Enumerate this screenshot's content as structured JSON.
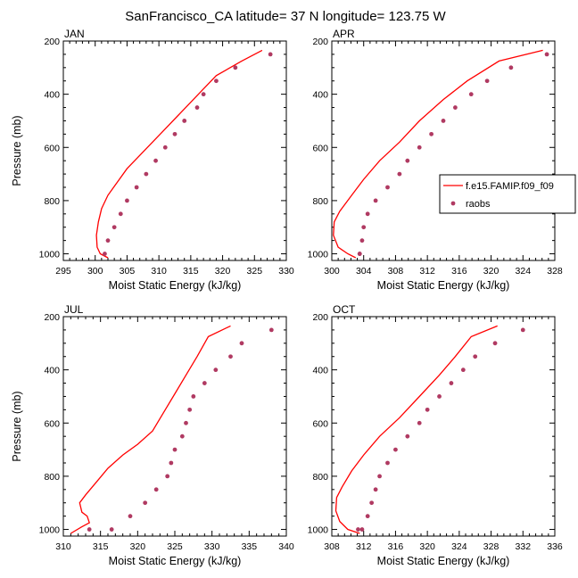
{
  "title": "SanFrancisco_CA  latitude= 37 N longitude= 123.75 W",
  "legend": {
    "entries": [
      {
        "label": "f.e15.FAMIP.f09_f09",
        "type": "line",
        "color": "#ff0000"
      },
      {
        "label": "raobs",
        "type": "marker",
        "color": "#b03a62"
      }
    ]
  },
  "chart_data": [
    {
      "type": "scatter",
      "title": "JAN",
      "xlabel": "Moist Static Energy (kJ/kg)",
      "ylabel": "Pressure (mb)",
      "xlim": [
        295,
        330
      ],
      "ylim": [
        1025,
        200
      ],
      "xticks": [
        295,
        300,
        305,
        310,
        315,
        320,
        325,
        330
      ],
      "yticks": [
        200,
        400,
        600,
        800,
        1000
      ],
      "series": [
        {
          "name": "f.e15.FAMIP.f09_f09",
          "style": "line",
          "color": "#ff0000",
          "x": [
            326.2,
            323,
            319,
            317,
            315,
            313,
            311,
            309,
            307,
            305,
            303.5,
            302,
            301,
            300.5,
            300.2,
            300.3,
            300.8,
            302
          ],
          "y": [
            235,
            275,
            330,
            380,
            430,
            480,
            530,
            580,
            630,
            680,
            730,
            780,
            830,
            880,
            930,
            975,
            1000,
            1015
          ]
        },
        {
          "name": "raobs",
          "style": "markers",
          "color": "#b03a62",
          "x": [
            327.5,
            322,
            319,
            317,
            316,
            314,
            312.5,
            311,
            309.5,
            308,
            306.5,
            305,
            304,
            303,
            302,
            301.5
          ],
          "y": [
            250,
            300,
            350,
            400,
            450,
            500,
            550,
            600,
            650,
            700,
            750,
            800,
            850,
            900,
            950,
            1000
          ]
        }
      ]
    },
    {
      "type": "scatter",
      "title": "APR",
      "xlabel": "Moist Static Energy (kJ/kg)",
      "ylabel": "",
      "xlim": [
        300,
        328
      ],
      "ylim": [
        1025,
        200
      ],
      "xticks": [
        300,
        304,
        308,
        312,
        316,
        320,
        324,
        328
      ],
      "yticks": [
        200,
        400,
        600,
        800,
        1000
      ],
      "series": [
        {
          "name": "f.e15.FAMIP.f09_f09",
          "style": "line",
          "color": "#ff0000",
          "x": [
            326.5,
            321,
            317,
            314,
            311,
            308.5,
            306,
            304,
            302.5,
            301,
            300.3,
            300.2,
            300.8,
            302,
            303
          ],
          "y": [
            235,
            275,
            350,
            420,
            500,
            580,
            650,
            720,
            780,
            840,
            880,
            930,
            975,
            1000,
            1015
          ]
        },
        {
          "name": "raobs",
          "style": "markers",
          "color": "#b03a62",
          "x": [
            327,
            322.5,
            319.5,
            317.5,
            315.5,
            314,
            312.5,
            311,
            309.5,
            308.5,
            307,
            305.5,
            304.5,
            304,
            303.8,
            303.5,
            303.5
          ],
          "y": [
            250,
            300,
            350,
            400,
            450,
            500,
            550,
            600,
            650,
            700,
            750,
            800,
            850,
            900,
            950,
            1000,
            1000
          ]
        }
      ]
    },
    {
      "type": "scatter",
      "title": "JUL",
      "xlabel": "Moist Static Energy (kJ/kg)",
      "ylabel": "Pressure (mb)",
      "xlim": [
        310,
        340
      ],
      "ylim": [
        1025,
        200
      ],
      "xticks": [
        310,
        315,
        320,
        325,
        330,
        335,
        340
      ],
      "yticks": [
        200,
        400,
        600,
        800,
        1000
      ],
      "series": [
        {
          "name": "f.e15.FAMIP.f09_f09",
          "style": "line",
          "color": "#ff0000",
          "x": [
            332.5,
            329.5,
            328,
            326.5,
            325,
            323.5,
            322,
            320,
            318,
            316,
            314.5,
            313,
            312.2,
            312.5,
            313.2,
            313.5,
            312.5,
            311
          ],
          "y": [
            235,
            275,
            350,
            420,
            490,
            560,
            630,
            680,
            720,
            770,
            820,
            870,
            900,
            935,
            950,
            975,
            990,
            1015
          ]
        },
        {
          "name": "raobs",
          "style": "markers",
          "color": "#b03a62",
          "x": [
            338,
            334,
            332.5,
            330.5,
            329,
            327.5,
            327,
            326.5,
            326,
            325,
            324.5,
            324,
            322.5,
            321,
            319,
            316.5,
            313.5
          ],
          "y": [
            250,
            300,
            350,
            400,
            450,
            500,
            550,
            600,
            650,
            700,
            750,
            800,
            850,
            900,
            950,
            1000,
            1000
          ]
        }
      ]
    },
    {
      "type": "scatter",
      "title": "OCT",
      "xlabel": "Moist Static Energy (kJ/kg)",
      "ylabel": "",
      "xlim": [
        308,
        336
      ],
      "ylim": [
        1025,
        200
      ],
      "xticks": [
        308,
        312,
        316,
        320,
        324,
        328,
        332,
        336
      ],
      "yticks": [
        200,
        400,
        600,
        800,
        1000
      ],
      "series": [
        {
          "name": "f.e15.FAMIP.f09_f09",
          "style": "line",
          "color": "#ff0000",
          "x": [
            328.8,
            325.5,
            323.5,
            321.5,
            319,
            316.5,
            314,
            312,
            310.5,
            309.3,
            308.6,
            308.5,
            309,
            310,
            311.5
          ],
          "y": [
            235,
            275,
            350,
            420,
            500,
            580,
            650,
            720,
            780,
            840,
            880,
            930,
            970,
            1000,
            1015
          ]
        },
        {
          "name": "raobs",
          "style": "markers",
          "color": "#b03a62",
          "x": [
            332,
            328.5,
            326,
            324.5,
            323,
            321.5,
            320,
            319,
            317.5,
            316,
            315,
            314,
            313.5,
            313,
            312.5,
            311.8,
            311.3
          ],
          "y": [
            250,
            300,
            350,
            400,
            450,
            500,
            550,
            600,
            650,
            700,
            750,
            800,
            850,
            900,
            950,
            1000,
            1000
          ]
        }
      ]
    }
  ]
}
